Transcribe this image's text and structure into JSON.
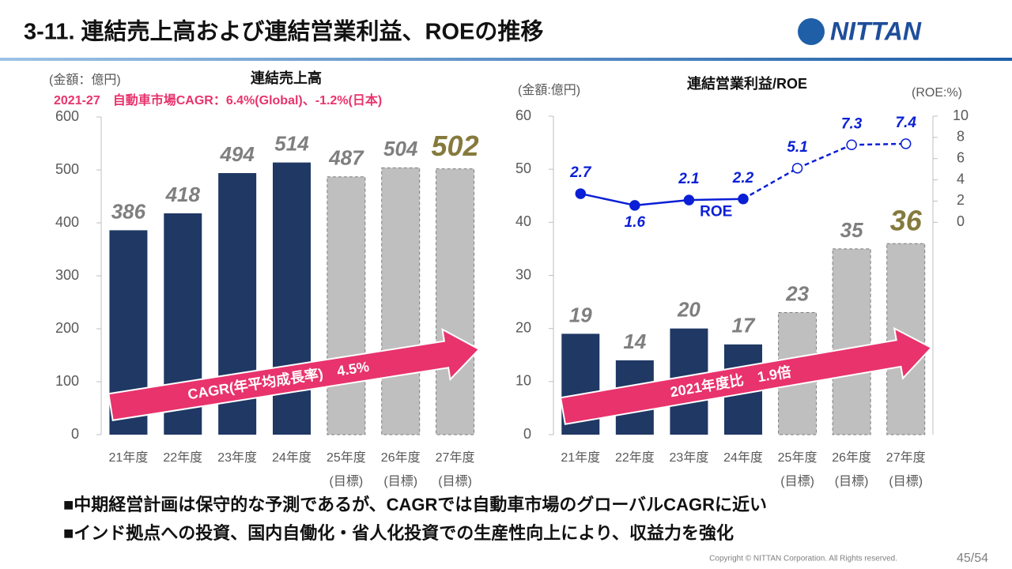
{
  "header": {
    "title": "3-11. 連結売上高および連結営業利益、ROEの推移",
    "logo": "NITTAN"
  },
  "chart_data": [
    {
      "type": "bar",
      "title": "連結売上高",
      "unit_label": "(金額：億円)",
      "subtitle": "2021-27　自動車市場CAGR：6.4%(Global)、-1.2%(日本)",
      "categories": [
        "21年度",
        "22年度",
        "23年度",
        "24年度",
        "25年度",
        "26年度",
        "27年度"
      ],
      "category_notes": [
        null,
        null,
        null,
        null,
        "(目標)",
        "(目標)",
        "(目標)"
      ],
      "values": [
        386,
        418,
        494,
        514,
        487,
        504,
        502
      ],
      "colors": [
        "#1f3864",
        "#1f3864",
        "#1f3864",
        "#1f3864",
        "#bfbfbf",
        "#bfbfbf",
        "#bfbfbf"
      ],
      "value_label_colors": [
        "#7f7f7f",
        "#7f7f7f",
        "#7f7f7f",
        "#7f7f7f",
        "#7f7f7f",
        "#7f7f7f",
        "#857a3c"
      ],
      "ylim": [
        0,
        600
      ],
      "yticks": [
        0,
        100,
        200,
        300,
        400,
        500,
        600
      ],
      "annotation": "CAGR(年平均成長率)　4.5%"
    },
    {
      "type": "bar_line",
      "title": "連結営業利益/ROE",
      "unit_label": "(金額:億円)",
      "y2_unit_label": "(ROE:%)",
      "categories": [
        "21年度",
        "22年度",
        "23年度",
        "24年度",
        "25年度",
        "26年度",
        "27年度"
      ],
      "category_notes": [
        null,
        null,
        null,
        null,
        "(目標)",
        "(目標)",
        "(目標)"
      ],
      "series": [
        {
          "values": [
            19,
            14,
            20,
            17,
            23,
            35,
            36
          ],
          "colors": [
            "#1f3864",
            "#1f3864",
            "#1f3864",
            "#1f3864",
            "#bfbfbf",
            "#bfbfbf",
            "#bfbfbf"
          ],
          "value_label_colors": [
            "#7f7f7f",
            "#7f7f7f",
            "#7f7f7f",
            "#7f7f7f",
            "#7f7f7f",
            "#7f7f7f",
            "#857a3c"
          ]
        },
        {
          "name": "ROE",
          "color": "#0a1fd6",
          "axis": "y2",
          "values": [
            2.7,
            1.6,
            2.1,
            2.2,
            5.1,
            7.3,
            7.4
          ]
        }
      ],
      "ylim": [
        0,
        60
      ],
      "yticks": [
        0,
        10,
        20,
        30,
        40,
        50,
        60
      ],
      "y2lim": [
        -20,
        10
      ],
      "y2ticks": [
        0,
        2,
        4,
        6,
        8,
        10
      ],
      "annotation": "2021年度比　1.9倍"
    }
  ],
  "bullets": [
    "■中期経営計画は保守的な予測であるが、CAGRでは自動車市場のグローバルCAGRに近い",
    "■インド拠点への投資、国内自働化・省人化投資での生産性向上により、収益力を強化"
  ],
  "footer": {
    "copyright": "Copyright © NITTAN Corporation. All Rights reserved.",
    "page": "45/54"
  }
}
